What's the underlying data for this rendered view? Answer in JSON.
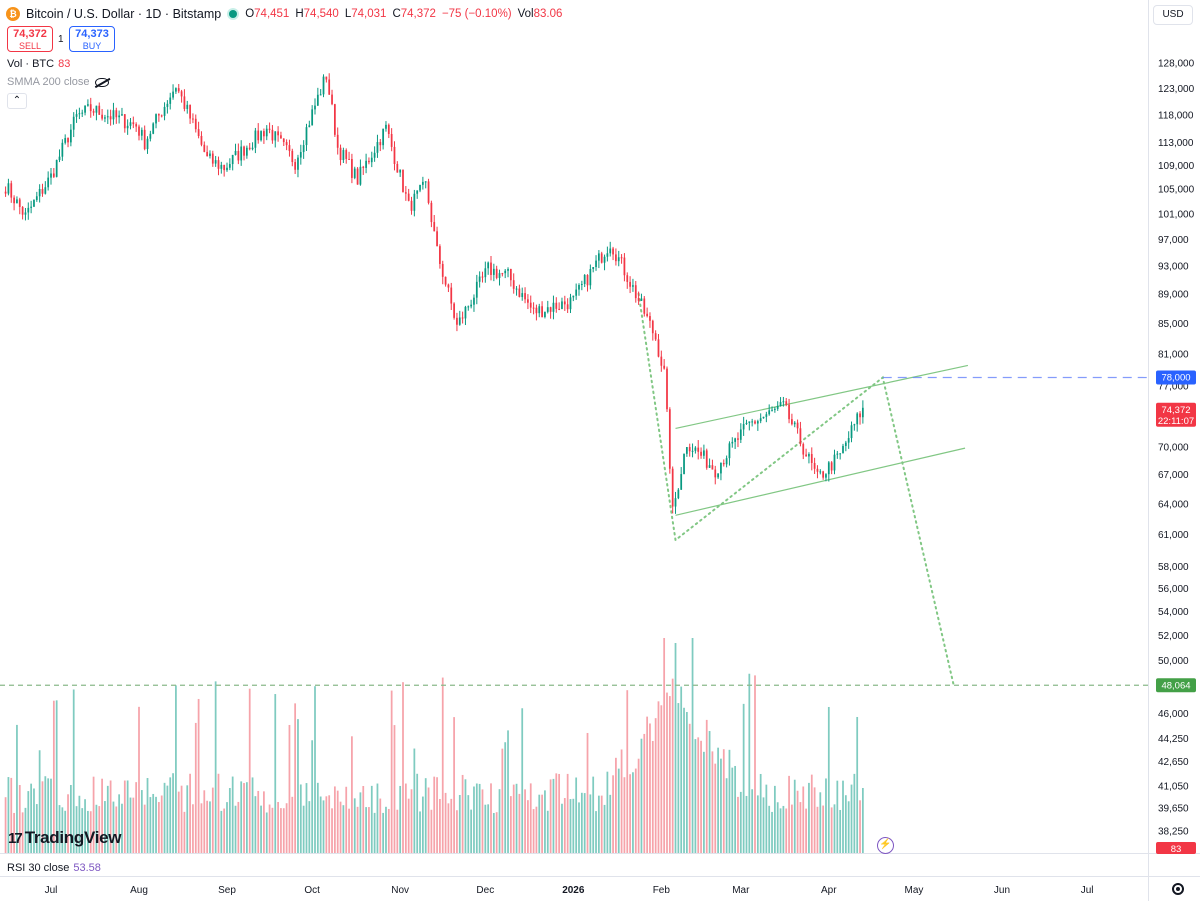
{
  "header": {
    "symbol_title": "Bitcoin / U.S. Dollar · 1D · Bitstamp",
    "ohlc": {
      "o_label": "O",
      "o": "74,451",
      "h_label": "H",
      "h": "74,540",
      "l_label": "L",
      "l": "74,031",
      "c_label": "C",
      "c": "74,372",
      "change": "−75 (−0.10%)",
      "vol_label": "Vol",
      "vol": "83.06"
    },
    "sell": {
      "price": "74,372",
      "label": "SELL"
    },
    "buy": {
      "price": "74,373",
      "label": "BUY"
    },
    "spread": "1",
    "currency": "USD"
  },
  "indicators": {
    "vol_name": "Vol · BTC",
    "vol_value": "83",
    "smma_name": "SMMA 200 close",
    "rsi_name": "RSI 30 close",
    "rsi_value": "53.58"
  },
  "branding": {
    "logo_text": "TradingView",
    "logo_mark": "17"
  },
  "price_labels": {
    "current": "74,372",
    "countdown": "22:11:07",
    "level_high": "78,000",
    "level_low": "48,064",
    "volume_tag": "83"
  },
  "colors": {
    "up": "#089981",
    "down": "#f23645",
    "vol_up": "#7fcbc0",
    "vol_down": "#f6a3aa",
    "channel": "#81c784",
    "dotted_path": "#81c784",
    "level_high_line": "#5b7cfa",
    "level_low_line": "#8bb98b"
  },
  "chart_data": {
    "type": "candlestick",
    "title": "Bitcoin / U.S. Dollar · 1D · Bitstamp",
    "scale": "log",
    "ylim": [
      37500,
      131000
    ],
    "y_ticks": [
      "128,000",
      "123,000",
      "118,000",
      "113,000",
      "109,000",
      "105,000",
      "101,000",
      "97,000",
      "93,000",
      "89,000",
      "85,000",
      "81,000",
      "77,000",
      "70,000",
      "67,000",
      "64,000",
      "61,000",
      "58,000",
      "56,000",
      "54,000",
      "52,000",
      "50,000",
      "46,000",
      "44,250",
      "42,650",
      "41,050",
      "39,650",
      "38,250"
    ],
    "x_ticks": [
      "Jul",
      "Aug",
      "Sep",
      "Oct",
      "Nov",
      "Dec",
      "2026",
      "Feb",
      "Mar",
      "Apr",
      "May",
      "Jun",
      "Jul"
    ],
    "x_tick_dates": [
      "2025-07-01",
      "2025-08-01",
      "2025-09-01",
      "2025-10-01",
      "2025-11-01",
      "2025-12-01",
      "2026-01-01",
      "2026-02-01",
      "2026-03-01",
      "2026-04-01",
      "2026-05-01",
      "2026-06-01",
      "2026-07-01"
    ],
    "price_path": [
      {
        "date": "2025-06-15",
        "close": 105500
      },
      {
        "date": "2025-06-22",
        "close": 100500
      },
      {
        "date": "2025-07-01",
        "close": 107000
      },
      {
        "date": "2025-07-10",
        "close": 117500
      },
      {
        "date": "2025-07-15",
        "close": 119000
      },
      {
        "date": "2025-07-31",
        "close": 116000
      },
      {
        "date": "2025-08-03",
        "close": 113000
      },
      {
        "date": "2025-08-14",
        "close": 123500
      },
      {
        "date": "2025-08-25",
        "close": 110000
      },
      {
        "date": "2025-08-31",
        "close": 108500
      },
      {
        "date": "2025-09-15",
        "close": 115500
      },
      {
        "date": "2025-09-25",
        "close": 109500
      },
      {
        "date": "2025-10-06",
        "close": 125500
      },
      {
        "date": "2025-10-10",
        "close": 112000
      },
      {
        "date": "2025-10-17",
        "close": 106500
      },
      {
        "date": "2025-10-27",
        "close": 115500
      },
      {
        "date": "2025-11-04",
        "close": 102000
      },
      {
        "date": "2025-11-10",
        "close": 105500
      },
      {
        "date": "2025-11-14",
        "close": 95000
      },
      {
        "date": "2025-11-21",
        "close": 84500
      },
      {
        "date": "2025-12-02",
        "close": 92500
      },
      {
        "date": "2025-12-09",
        "close": 91500
      },
      {
        "date": "2025-12-18",
        "close": 86500
      },
      {
        "date": "2026-01-01",
        "close": 88000
      },
      {
        "date": "2026-01-14",
        "close": 96500
      },
      {
        "date": "2026-01-20",
        "close": 91500
      },
      {
        "date": "2026-01-30",
        "close": 83000
      },
      {
        "date": "2026-02-02",
        "close": 78500
      },
      {
        "date": "2026-02-05",
        "close": 63000
      },
      {
        "date": "2026-02-10",
        "close": 70500
      },
      {
        "date": "2026-02-20",
        "close": 67500
      },
      {
        "date": "2026-03-04",
        "close": 72500
      },
      {
        "date": "2026-03-16",
        "close": 74500
      },
      {
        "date": "2026-03-28",
        "close": 66500
      },
      {
        "date": "2026-04-05",
        "close": 69000
      },
      {
        "date": "2026-04-13",
        "close": 74372
      }
    ],
    "volume_peak_date": "2026-02-06",
    "annotations": {
      "channel_upper": [
        {
          "date": "2026-02-06",
          "price": 72000
        },
        {
          "date": "2026-05-20",
          "price": 79500
        }
      ],
      "channel_lower": [
        {
          "date": "2026-02-06",
          "price": 62800
        },
        {
          "date": "2026-05-19",
          "price": 69800
        }
      ],
      "projection_path": [
        {
          "date": "2026-01-24",
          "price": 89000
        },
        {
          "date": "2026-02-06",
          "price": 60400
        },
        {
          "date": "2026-04-20",
          "price": 78000
        },
        {
          "date": "2026-05-15",
          "price": 48064
        }
      ],
      "horizontal_levels": [
        {
          "price": 78000,
          "start_date": "2026-04-20"
        },
        {
          "price": 48064
        }
      ]
    }
  }
}
